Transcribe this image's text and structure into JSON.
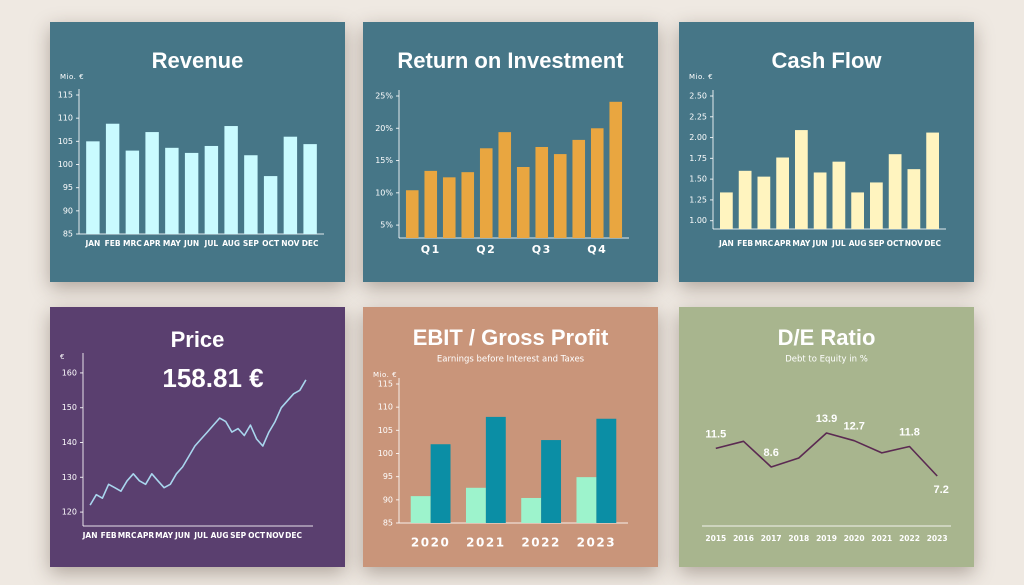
{
  "chart_data": [
    {
      "type": "bar",
      "title": "Revenue",
      "ylabel": "Mio. €",
      "categories": [
        "JAN",
        "FEB",
        "MRC",
        "APR",
        "MAY",
        "JUN",
        "JUL",
        "AUG",
        "SEP",
        "OCT",
        "NOV",
        "DEC"
      ],
      "values": [
        105,
        108.8,
        103,
        107,
        103.6,
        102.5,
        104,
        108.3,
        102,
        97.5,
        106,
        104.4
      ],
      "color": "#c9fbff",
      "ylim": [
        85,
        115
      ],
      "yticks": [
        85,
        90,
        95,
        100,
        105,
        110,
        115
      ]
    },
    {
      "type": "bar",
      "title": "Return on Investment",
      "categories": [
        null,
        "Q1",
        null,
        null,
        "Q2",
        null,
        null,
        "Q3",
        null,
        null,
        "Q4",
        null
      ],
      "values": [
        10.4,
        13.4,
        12.4,
        13.2,
        16.9,
        19.4,
        14,
        17.1,
        16,
        18.2,
        20,
        24.1
      ],
      "color": "#e9a640",
      "ylim": [
        3,
        25
      ],
      "yticks": [
        {
          "value": 5,
          "label": "5%"
        },
        {
          "value": 10,
          "label": "10%"
        },
        {
          "value": 15,
          "label": "15%"
        },
        {
          "value": 20,
          "label": "20%"
        },
        {
          "value": 25,
          "label": "25%"
        }
      ]
    },
    {
      "type": "bar",
      "title": "Cash Flow",
      "ylabel": "Mio. €",
      "categories": [
        "JAN",
        "FEB",
        "MRC",
        "APR",
        "MAY",
        "JUN",
        "JUL",
        "AUG",
        "SEP",
        "OCT",
        "NOV",
        "DEC"
      ],
      "values": [
        1.34,
        1.6,
        1.53,
        1.76,
        2.09,
        1.58,
        1.71,
        1.34,
        1.46,
        1.8,
        1.62,
        2.06
      ],
      "color": "#fff4bf",
      "ylim": [
        0.9,
        2.5
      ],
      "yticks": [
        {
          "value": 1,
          "label": "1.00"
        },
        1.25,
        {
          "value": 1.5,
          "label": "1.50"
        },
        1.75,
        {
          "value": 2,
          "label": "2.00"
        },
        2.25,
        {
          "value": 2.5,
          "label": "2.50"
        }
      ]
    },
    {
      "type": "line",
      "title": "Price",
      "ylabel": "€",
      "annotation": "158.81 €",
      "categories": [
        "JAN",
        null,
        null,
        "FEB",
        null,
        null,
        "MRC",
        null,
        null,
        "APR",
        null,
        null,
        "MAY",
        null,
        null,
        "JUN",
        null,
        null,
        "JUL",
        null,
        null,
        "AUG",
        null,
        null,
        "SEP",
        null,
        null,
        "OCT",
        null,
        null,
        "NOV",
        null,
        null,
        "DEC",
        null,
        null
      ],
      "values": [
        122,
        125,
        124,
        128,
        127,
        126,
        129,
        131,
        129,
        128,
        131,
        129,
        127,
        128,
        131,
        133,
        136,
        139,
        141,
        143,
        145,
        147,
        146,
        143,
        144,
        142,
        145,
        141,
        139,
        143,
        146,
        150,
        152,
        154,
        155,
        158
      ],
      "color": "#a9d6ee",
      "ylim": [
        116,
        164
      ],
      "yticks": [
        120,
        130,
        140,
        150,
        160
      ]
    },
    {
      "type": "bar",
      "title": "EBIT / Gross Profit",
      "subtitle": "Earnings before Interest and Taxes",
      "ylabel": "Mio. €",
      "categories": [
        "2020",
        "2021",
        "2022",
        "2023"
      ],
      "series": [
        {
          "color": "#9df3cc",
          "values": [
            90.8,
            92.6,
            90.4,
            94.9
          ]
        },
        {
          "color": "#0b8ea5",
          "values": [
            102,
            107.9,
            102.9,
            107.5
          ]
        }
      ],
      "ylim": [
        85,
        115
      ],
      "yticks": [
        85,
        90,
        95,
        100,
        105,
        110,
        115
      ]
    },
    {
      "type": "line",
      "title": "D/E Ratio",
      "subtitle": "Debt to Equity in %",
      "categories": [
        "2015",
        "2016",
        "2017",
        "2018",
        "2019",
        "2020",
        "2021",
        "2022",
        "2023"
      ],
      "values": [
        11.5,
        12.6,
        8.6,
        10,
        13.9,
        12.7,
        10.8,
        11.8,
        7.2
      ],
      "value_labels": [
        "11.5",
        null,
        "8.6",
        null,
        "13.9",
        "12.7",
        null,
        "11.8",
        "7.2"
      ],
      "color": "#5b2a52"
    }
  ]
}
